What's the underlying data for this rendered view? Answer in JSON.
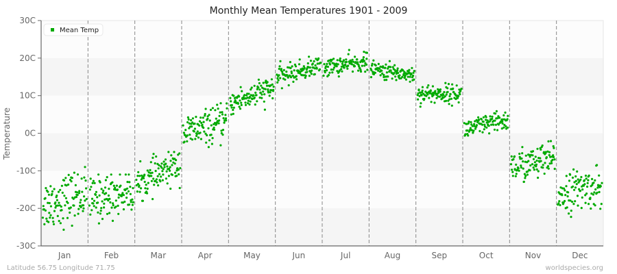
{
  "chart_data": {
    "type": "scatter",
    "title": "Monthly Mean Temperatures 1901 - 2009",
    "xlabel": "",
    "ylabel": "Temperature",
    "ylim": [
      -30,
      30
    ],
    "yticks": [
      "30C",
      "20C",
      "10C",
      "0C",
      "-10C",
      "-20C",
      "-30C"
    ],
    "ytick_values": [
      30,
      20,
      10,
      0,
      -10,
      -20,
      -30
    ],
    "categories": [
      "Jan",
      "Feb",
      "Mar",
      "Apr",
      "May",
      "Jun",
      "Jul",
      "Aug",
      "Sep",
      "Oct",
      "Nov",
      "Dec"
    ],
    "legend": {
      "position": "top-left",
      "entries": [
        "Mean Temp"
      ]
    },
    "grid": {
      "horizontal_bands": true,
      "vertical_month_dividers": "dashed"
    },
    "series": [
      {
        "name": "Mean Temp",
        "color": "#00aa00",
        "points_per_month": 109,
        "approx_monthly_distribution": [
          {
            "month": "Jan",
            "start_mean": -19,
            "end_mean": -16,
            "spread": 4.5,
            "min": -30,
            "max": -9
          },
          {
            "month": "Feb",
            "start_mean": -18,
            "end_mean": -15,
            "spread": 4.0,
            "min": -27,
            "max": -11
          },
          {
            "month": "Mar",
            "start_mean": -14,
            "end_mean": -8,
            "spread": 3.0,
            "min": -18,
            "max": -5
          },
          {
            "month": "Apr",
            "start_mean": 0,
            "end_mean": 3,
            "spread": 3.0,
            "min": -4,
            "max": 9
          },
          {
            "month": "May",
            "start_mean": 8,
            "end_mean": 12,
            "spread": 2.3,
            "min": 5,
            "max": 15
          },
          {
            "month": "Jun",
            "start_mean": 15,
            "end_mean": 18,
            "spread": 1.7,
            "min": 11,
            "max": 21
          },
          {
            "month": "Jul",
            "start_mean": 17.5,
            "end_mean": 19,
            "spread": 1.6,
            "min": 14,
            "max": 23
          },
          {
            "month": "Aug",
            "start_mean": 17,
            "end_mean": 15.5,
            "spread": 1.5,
            "min": 12,
            "max": 20
          },
          {
            "month": "Sep",
            "start_mean": 10.5,
            "end_mean": 10.5,
            "spread": 1.6,
            "min": 6,
            "max": 14
          },
          {
            "month": "Oct",
            "start_mean": 1,
            "end_mean": 3.5,
            "spread": 1.8,
            "min": -4,
            "max": 7
          },
          {
            "month": "Nov",
            "start_mean": -9,
            "end_mean": -7,
            "spread": 3.0,
            "min": -19,
            "max": -2
          },
          {
            "month": "Dec",
            "start_mean": -16,
            "end_mean": -14,
            "spread": 3.5,
            "min": -26,
            "max": -8
          }
        ]
      }
    ]
  },
  "footer": {
    "location": "Latitude 56.75 Longitude 71.75",
    "source": "worldspecies.org"
  },
  "colors": {
    "point": "#00aa00",
    "band_light": "#fcfcfc",
    "band_dark": "#f5f5f5",
    "divider": "#888888",
    "axis": "#666666"
  }
}
